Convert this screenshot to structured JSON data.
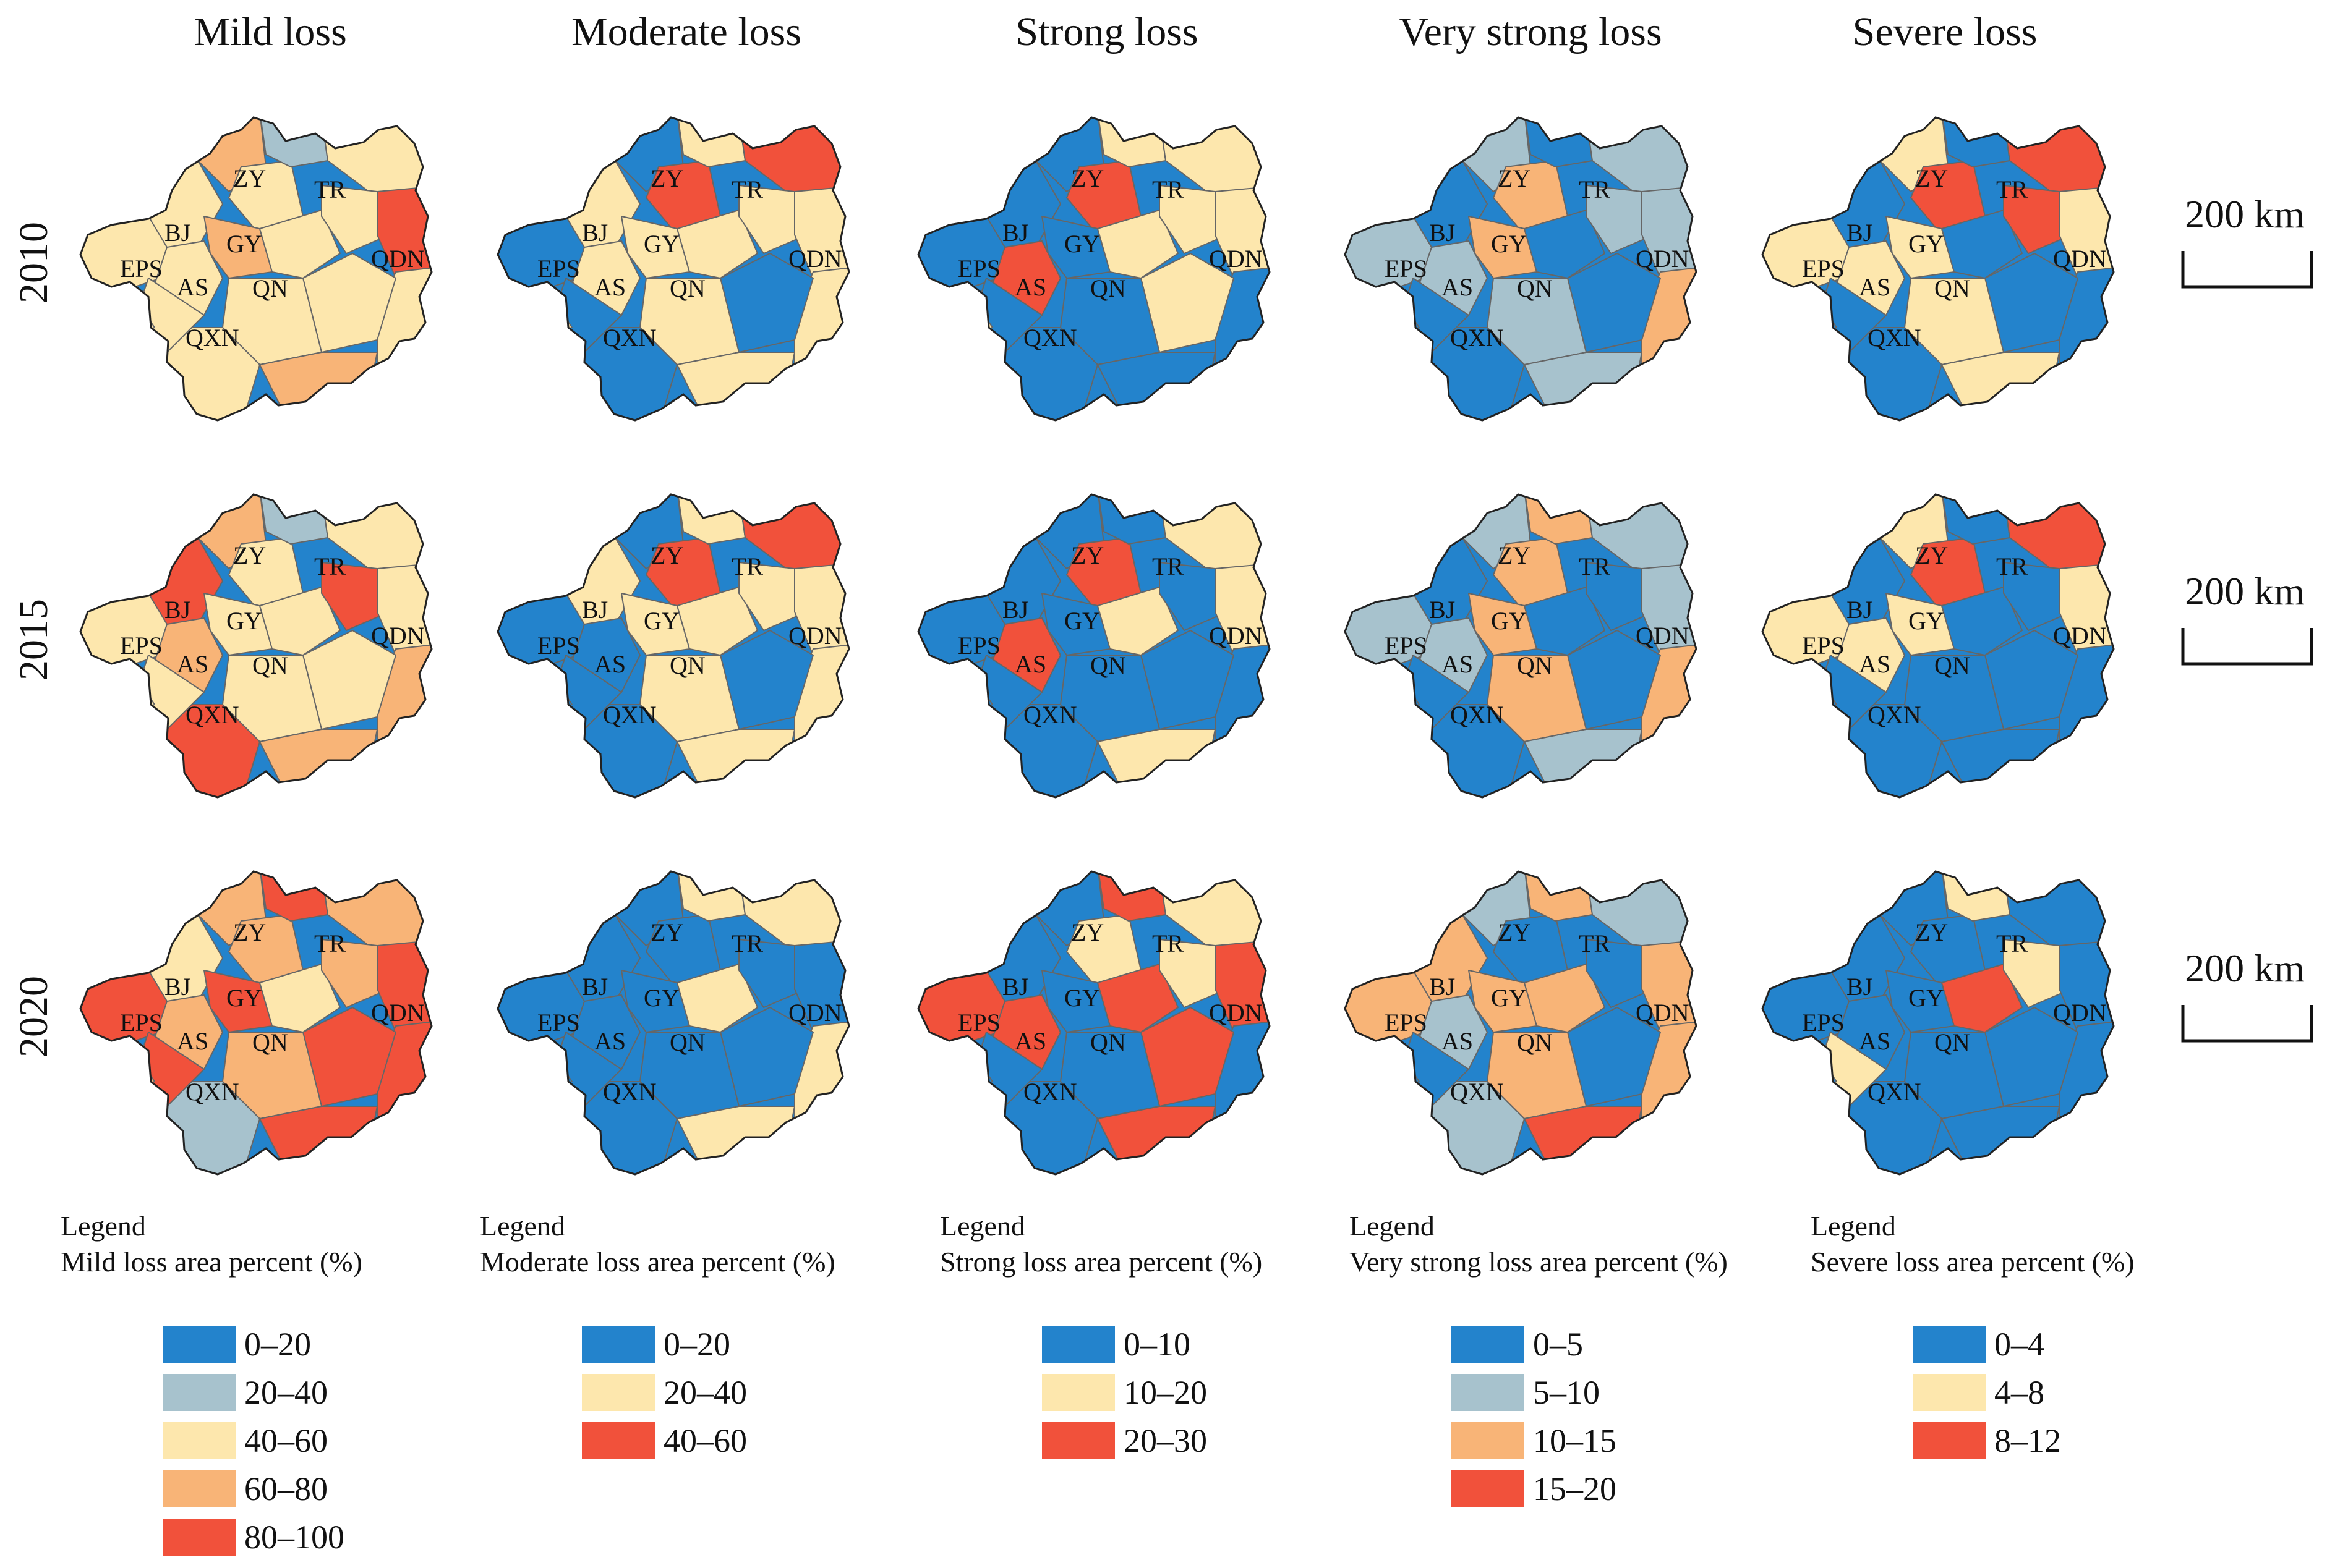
{
  "columns": [
    {
      "title": "Mild loss",
      "scheme": "mild"
    },
    {
      "title": "Moderate loss",
      "scheme": "moderate"
    },
    {
      "title": "Strong loss",
      "scheme": "strong"
    },
    {
      "title": "Very strong loss",
      "scheme": "very_strong"
    },
    {
      "title": "Severe loss",
      "scheme": "severe"
    }
  ],
  "years": [
    "2010",
    "2015",
    "2020"
  ],
  "region_labels": [
    "ZY",
    "TR",
    "BJ",
    "GY",
    "QDN",
    "EPS",
    "AS",
    "QN",
    "QXN"
  ],
  "scale_bar": {
    "label": "200 km"
  },
  "colors": {
    "blue": "#2383cc",
    "light_blue": "#a7c2cd",
    "cream": "#fde7ad",
    "light_orange": "#f8b477",
    "red": "#f1513b",
    "border": "#666666",
    "outline": "#222222"
  },
  "legends": [
    {
      "title": "Legend",
      "subtitle": "Mild loss area percent (%)",
      "items": [
        {
          "label": "0–20",
          "color": "#2383cc"
        },
        {
          "label": "20–40",
          "color": "#a7c2cd"
        },
        {
          "label": "40–60",
          "color": "#fde7ad"
        },
        {
          "label": "60–80",
          "color": "#f8b477"
        },
        {
          "label": "80–100",
          "color": "#f1513b"
        }
      ]
    },
    {
      "title": "Legend",
      "subtitle": "Moderate loss area percent (%)",
      "items": [
        {
          "label": "0–20",
          "color": "#2383cc"
        },
        {
          "label": "20–40",
          "color": "#fde7ad"
        },
        {
          "label": "40–60",
          "color": "#f1513b"
        }
      ]
    },
    {
      "title": "Legend",
      "subtitle": "Strong loss area percent (%)",
      "items": [
        {
          "label": "0–10",
          "color": "#2383cc"
        },
        {
          "label": "10–20",
          "color": "#fde7ad"
        },
        {
          "label": " 20–30",
          "color": "#f1513b"
        }
      ]
    },
    {
      "title": "Legend",
      "subtitle": "Very strong loss area percent (%)",
      "items": [
        {
          "label": "0–5",
          "color": "#2383cc"
        },
        {
          "label": "5–10",
          "color": "#a7c2cd"
        },
        {
          "label": "10–15",
          "color": "#f8b477"
        },
        {
          "label": "15–20",
          "color": "#f1513b"
        }
      ]
    },
    {
      "title": "Legend",
      "subtitle": "Severe loss area percent (%)",
      "items": [
        {
          "label": "0–4",
          "color": "#2383cc"
        },
        {
          "label": "4–8",
          "color": "#fde7ad"
        },
        {
          "label": "8–12",
          "color": "#f1513b"
        }
      ]
    }
  ],
  "maps": {
    "mild": [
      [
        "cream",
        "cream",
        "orange",
        "cream",
        "lightblue",
        "cream",
        "cream",
        "orange",
        "cream",
        "cream",
        "red",
        "cream",
        "cream",
        "cream",
        "cream",
        "orange",
        "cream",
        "cream"
      ],
      [
        "cream",
        "red",
        "orange",
        "cream",
        "lightblue",
        "cream",
        "orange",
        "cream",
        "cream",
        "red",
        "cream",
        "orange",
        "cream",
        "cream",
        "red",
        "orange",
        "cream",
        "cream"
      ],
      [
        "red",
        "cream",
        "orange",
        "orange",
        "red",
        "orange",
        "orange",
        "red",
        "cream",
        "orange",
        "red",
        "red",
        "red",
        "orange",
        "lightblue",
        "red",
        "red",
        "orange"
      ]
    ],
    "moderate": [
      [
        "blue",
        "cream",
        "blue",
        "red",
        "cream",
        "red",
        "cream",
        "cream",
        "cream",
        "cream",
        "cream",
        "cream",
        "blue",
        "cream",
        "blue",
        "cream",
        "blue",
        "cream"
      ],
      [
        "blue",
        "cream",
        "blue",
        "red",
        "cream",
        "red",
        "blue",
        "cream",
        "cream",
        "cream",
        "cream",
        "cream",
        "blue",
        "cream",
        "blue",
        "cream",
        "blue",
        "blue"
      ],
      [
        "blue",
        "blue",
        "blue",
        "blue",
        "cream",
        "cream",
        "blue",
        "blue",
        "cream",
        "blue",
        "blue",
        "cream",
        "blue",
        "blue",
        "blue",
        "cream",
        "blue",
        "blue"
      ]
    ],
    "strong": [
      [
        "blue",
        "blue",
        "blue",
        "red",
        "cream",
        "cream",
        "red",
        "blue",
        "cream",
        "cream",
        "cream",
        "blue",
        "cream",
        "blue",
        "blue",
        "blue",
        "blue",
        "cream"
      ],
      [
        "blue",
        "blue",
        "blue",
        "red",
        "blue",
        "cream",
        "red",
        "blue",
        "cream",
        "blue",
        "cream",
        "blue",
        "blue",
        "blue",
        "blue",
        "cream",
        "blue",
        "blue"
      ],
      [
        "red",
        "blue",
        "blue",
        "cream",
        "red",
        "cream",
        "red",
        "blue",
        "red",
        "cream",
        "red",
        "blue",
        "red",
        "blue",
        "blue",
        "red",
        "blue",
        "blue"
      ]
    ],
    "very_strong": [
      [
        "lightblue",
        "blue",
        "lightblue",
        "orange",
        "blue",
        "lightblue",
        "lightblue",
        "orange",
        "blue",
        "lightblue",
        "lightblue",
        "orange",
        "blue",
        "lightblue",
        "blue",
        "lightblue",
        "blue",
        "blue"
      ],
      [
        "lightblue",
        "blue",
        "lightblue",
        "orange",
        "orange",
        "lightblue",
        "lightblue",
        "orange",
        "blue",
        "blue",
        "lightblue",
        "orange",
        "blue",
        "orange",
        "blue",
        "lightblue",
        "blue",
        "blue"
      ],
      [
        "orange",
        "orange",
        "lightblue",
        "blue",
        "orange",
        "lightblue",
        "lightblue",
        "orange",
        "orange",
        "blue",
        "orange",
        "orange",
        "blue",
        "orange",
        "lightblue",
        "red",
        "blue",
        "blue"
      ]
    ],
    "severe": [
      [
        "cream",
        "blue",
        "cream",
        "red",
        "blue",
        "red",
        "cream",
        "cream",
        "blue",
        "red",
        "cream",
        "blue",
        "blue",
        "cream",
        "blue",
        "cream",
        "blue",
        "blue"
      ],
      [
        "cream",
        "blue",
        "cream",
        "red",
        "blue",
        "red",
        "cream",
        "cream",
        "blue",
        "blue",
        "cream",
        "blue",
        "blue",
        "blue",
        "blue",
        "blue",
        "blue",
        "blue"
      ],
      [
        "blue",
        "blue",
        "blue",
        "blue",
        "cream",
        "blue",
        "blue",
        "blue",
        "red",
        "cream",
        "blue",
        "blue",
        "blue",
        "blue",
        "blue",
        "blue",
        "cream",
        "blue"
      ]
    ]
  }
}
